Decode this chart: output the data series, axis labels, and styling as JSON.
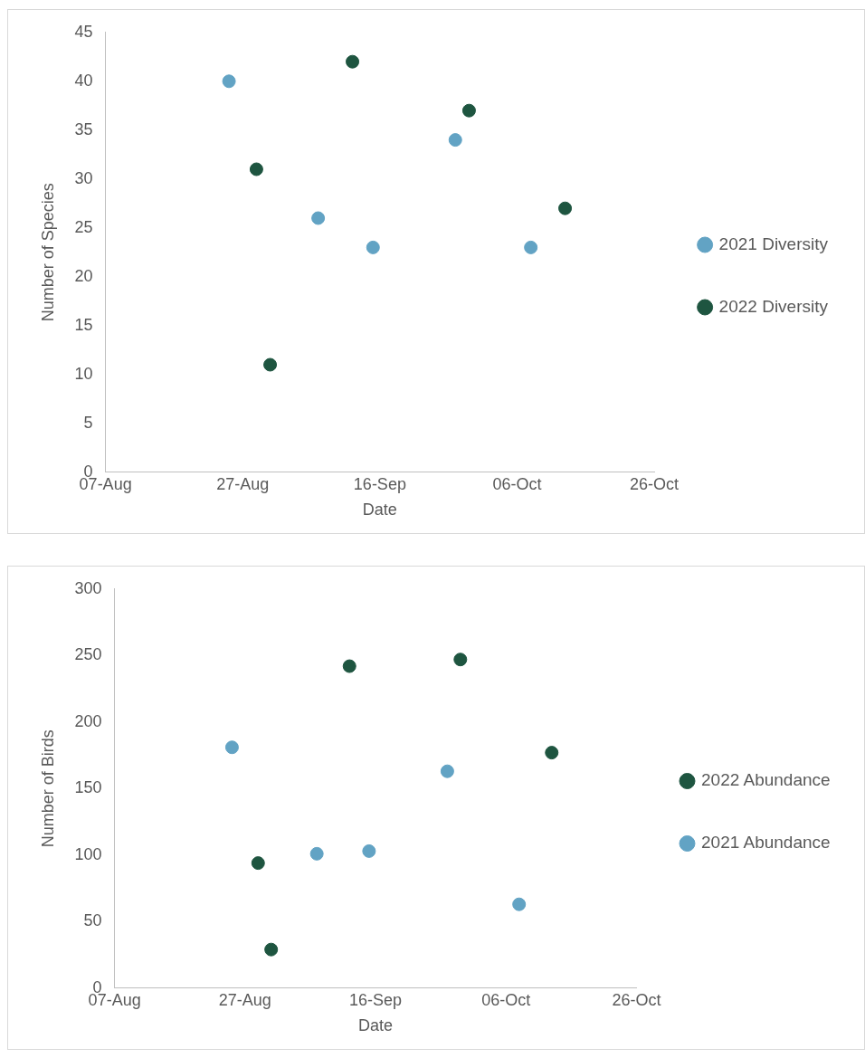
{
  "chart_data": [
    {
      "type": "scatter",
      "xlabel": "Date",
      "ylabel": "Number of Species",
      "xlim": [
        "--08-07",
        "--10-26"
      ],
      "xticks": [
        {
          "value": "--08-07",
          "label": "07-Aug"
        },
        {
          "value": "--08-27",
          "label": "27-Aug"
        },
        {
          "value": "--09-16",
          "label": "16-Sep"
        },
        {
          "value": "--10-06",
          "label": "06-Oct"
        },
        {
          "value": "--10-26",
          "label": "26-Oct"
        }
      ],
      "ylim": [
        0,
        45
      ],
      "yticks": [
        0,
        5,
        10,
        15,
        20,
        25,
        30,
        35,
        40,
        45
      ],
      "grid": false,
      "legend": "right",
      "marker": "circle",
      "series": [
        {
          "name": "2021 Diversity",
          "color": "#62a3c4",
          "x": [
            "--08-25",
            "--09-07",
            "--09-15",
            "--09-27",
            "--10-08"
          ],
          "values": [
            40,
            26,
            23,
            34,
            23
          ]
        },
        {
          "name": "2022 Diversity",
          "color": "#1e5540",
          "x": [
            "--08-29",
            "--08-31",
            "--09-12",
            "--09-29",
            "--10-13"
          ],
          "values": [
            31,
            11,
            42,
            37,
            27
          ]
        }
      ]
    },
    {
      "type": "scatter",
      "xlabel": "Date",
      "ylabel": "Number of Birds",
      "xlim": [
        "--08-07",
        "--10-26"
      ],
      "xticks": [
        {
          "value": "--08-07",
          "label": "07-Aug"
        },
        {
          "value": "--08-27",
          "label": "27-Aug"
        },
        {
          "value": "--09-16",
          "label": "16-Sep"
        },
        {
          "value": "--10-06",
          "label": "06-Oct"
        },
        {
          "value": "--10-26",
          "label": "26-Oct"
        }
      ],
      "ylim": [
        0,
        300
      ],
      "yticks": [
        0,
        50,
        100,
        150,
        200,
        250,
        300
      ],
      "grid": false,
      "legend": "right",
      "marker": "circle",
      "series": [
        {
          "name": "2022 Abundance",
          "color": "#1e5540",
          "x": [
            "--08-29",
            "--08-31",
            "--09-12",
            "--09-29",
            "--10-13"
          ],
          "values": [
            94,
            29,
            242,
            247,
            177
          ]
        },
        {
          "name": "2021 Abundance",
          "color": "#62a3c4",
          "x": [
            "--08-25",
            "--09-07",
            "--09-15",
            "--09-27",
            "--10-08"
          ],
          "values": [
            181,
            101,
            103,
            163,
            63
          ]
        }
      ]
    }
  ]
}
